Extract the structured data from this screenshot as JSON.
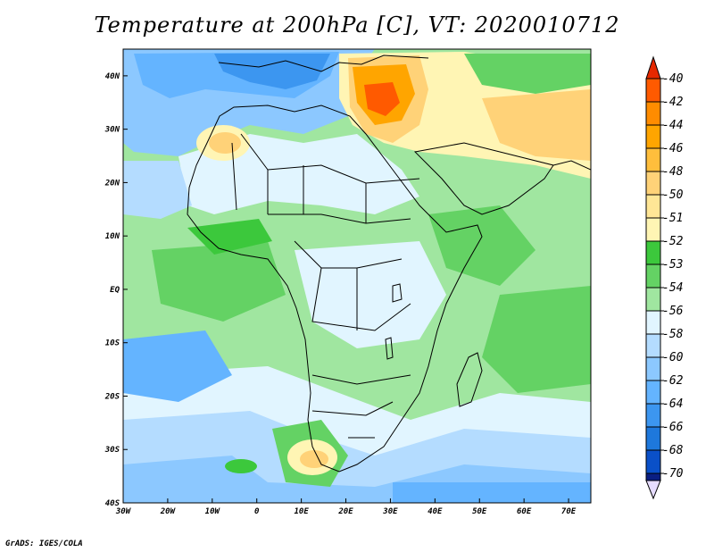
{
  "title": "Temperature at 200hPa [C], VT: 2020010712",
  "credit": "GrADS: IGES/COLA",
  "map": {
    "lon_range": [
      -30,
      75
    ],
    "lat_range": [
      -40,
      45
    ],
    "lon_ticks": [
      {
        "value": -30,
        "label": "30W"
      },
      {
        "value": -20,
        "label": "20W"
      },
      {
        "value": -10,
        "label": "10W"
      },
      {
        "value": 0,
        "label": "0"
      },
      {
        "value": 10,
        "label": "10E"
      },
      {
        "value": 20,
        "label": "20E"
      },
      {
        "value": 30,
        "label": "30E"
      },
      {
        "value": 40,
        "label": "40E"
      },
      {
        "value": 50,
        "label": "50E"
      },
      {
        "value": 60,
        "label": "60E"
      },
      {
        "value": 70,
        "label": "70E"
      }
    ],
    "lat_ticks": [
      {
        "value": 40,
        "label": "40N"
      },
      {
        "value": 30,
        "label": "30N"
      },
      {
        "value": 20,
        "label": "20N"
      },
      {
        "value": 10,
        "label": "10N"
      },
      {
        "value": 0,
        "label": "EQ"
      },
      {
        "value": -10,
        "label": "10S"
      },
      {
        "value": -20,
        "label": "20S"
      },
      {
        "value": -30,
        "label": "30S"
      },
      {
        "value": -40,
        "label": "40S"
      }
    ]
  },
  "colorbar": {
    "levels": [
      {
        "label": "-40",
        "color": "#ff5a00"
      },
      {
        "label": "-42",
        "color": "#ff8c00"
      },
      {
        "label": "-44",
        "color": "#ffa500"
      },
      {
        "label": "-46",
        "color": "#ffbe3c"
      },
      {
        "label": "-48",
        "color": "#ffd278"
      },
      {
        "label": "-50",
        "color": "#ffe696"
      },
      {
        "label": "-51",
        "color": "#fff5b4"
      },
      {
        "label": "-52",
        "color": "#3cc83c"
      },
      {
        "label": "-53",
        "color": "#64d264"
      },
      {
        "label": "-54",
        "color": "#a0e6a0"
      },
      {
        "label": "-56",
        "color": "#e1f5ff"
      },
      {
        "label": "-58",
        "color": "#b4dcff"
      },
      {
        "label": "-60",
        "color": "#8cc8ff"
      },
      {
        "label": "-62",
        "color": "#64b4ff"
      },
      {
        "label": "-64",
        "color": "#3c96f0"
      },
      {
        "label": "-66",
        "color": "#1e78dc"
      },
      {
        "label": "-68",
        "color": "#0a50c8"
      },
      {
        "label": "-70",
        "color": "#0a1e82"
      }
    ],
    "top_color": "#e62800",
    "bottom_color": "#e6dcff"
  },
  "colors": {
    "base_green": "#a0e6a0",
    "pale": "#e1f5ff",
    "light_blue": "#b4dcff",
    "blue": "#8cc8ff",
    "mid_blue": "#64b4ff",
    "deep_blue": "#3c96f0",
    "green": "#64d264",
    "dark_green": "#3cc83c",
    "yellow": "#fff5b4",
    "light_orange": "#ffd278",
    "orange": "#ffa500",
    "red_orange": "#ff5a00",
    "coast": "#000000"
  }
}
